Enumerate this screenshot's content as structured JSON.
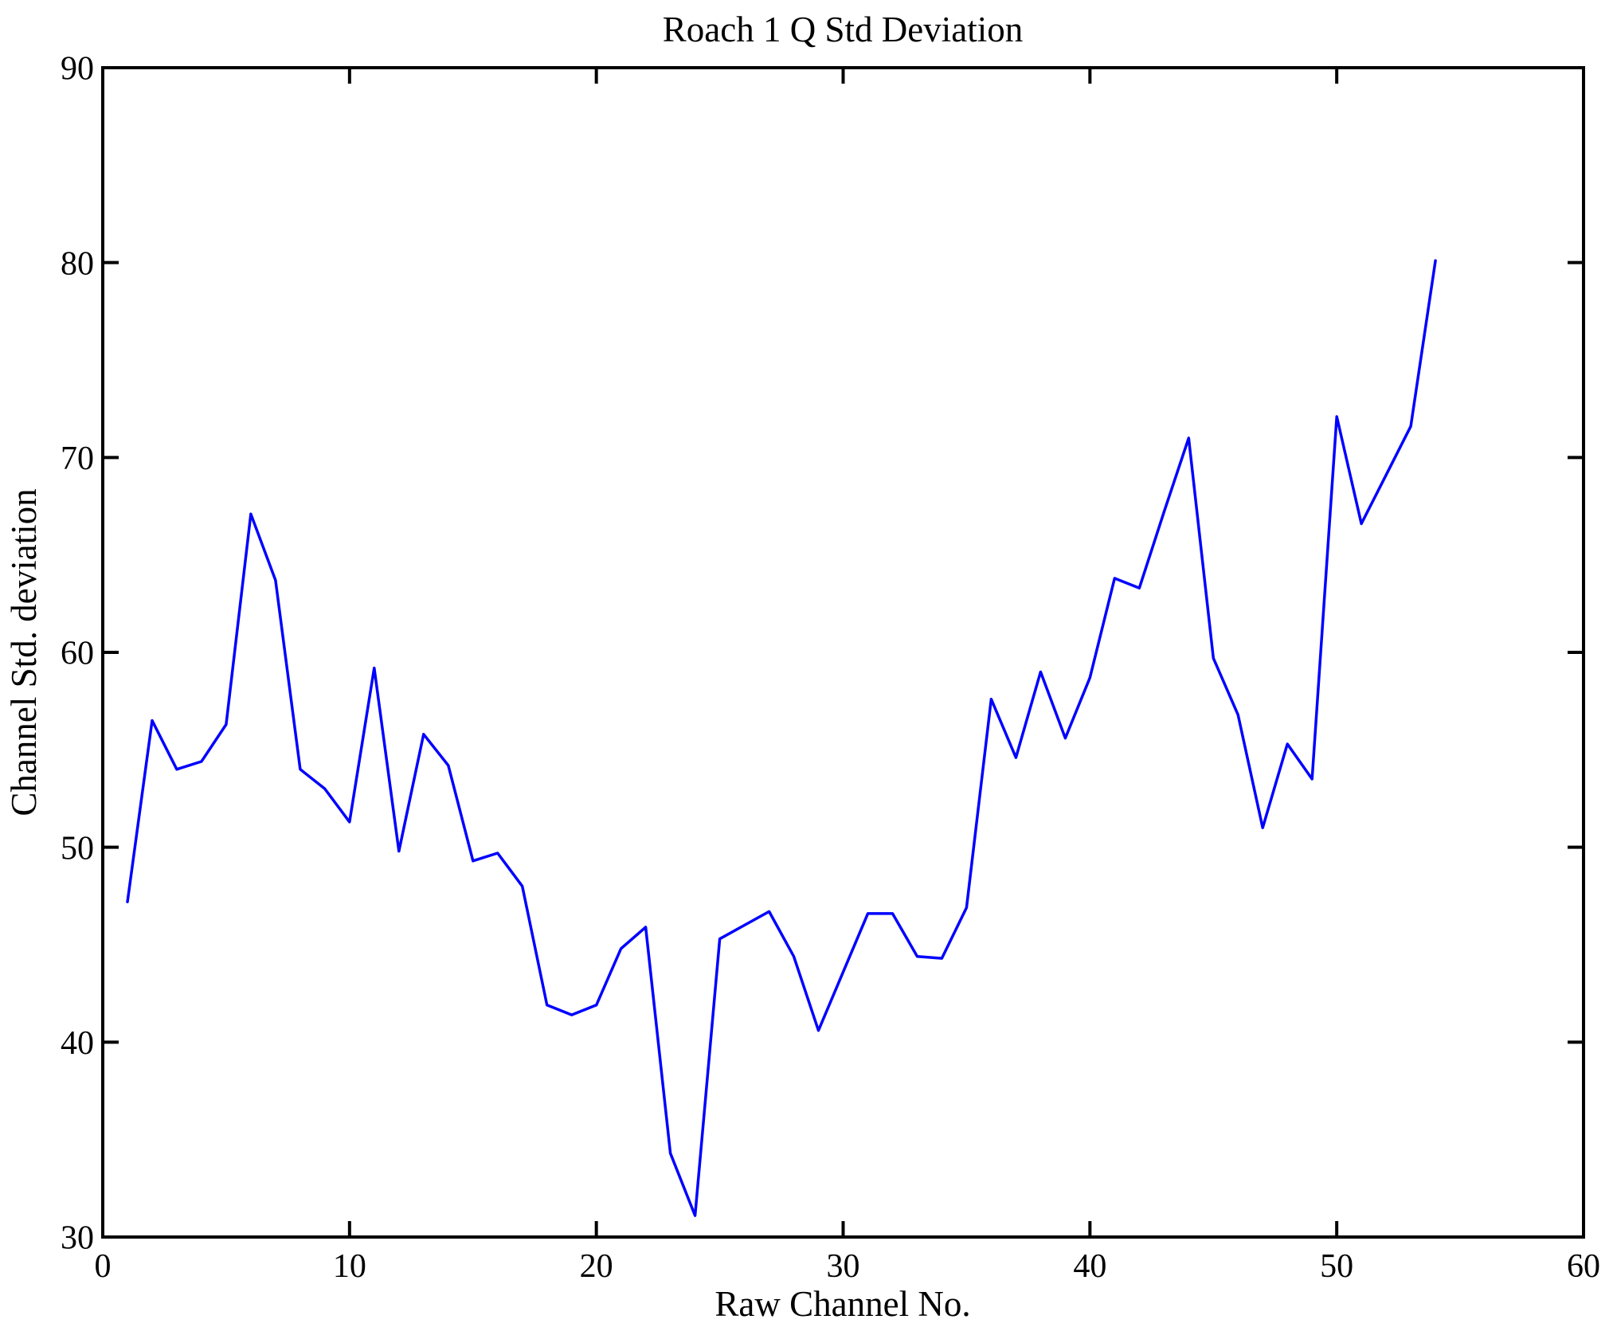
{
  "figure": {
    "title": "Roach 1 Q Std Deviation",
    "xlabel": "Raw Channel No.",
    "ylabel": "Channel Std. deviation"
  },
  "chart_data": {
    "type": "line",
    "title": "Roach 1 Q Std Deviation",
    "xlabel": "Raw Channel No.",
    "ylabel": "Channel Std. deviation",
    "xlim": [
      0,
      60
    ],
    "ylim": [
      30,
      90
    ],
    "xticks": [
      0,
      10,
      20,
      30,
      40,
      50,
      60
    ],
    "yticks": [
      30,
      40,
      50,
      60,
      70,
      80,
      90
    ],
    "grid": false,
    "legend_position": "none",
    "line_color": "#0000FF",
    "axis_color": "#000000",
    "series": [
      {
        "name": "Channel Std. deviation",
        "x": [
          1,
          2,
          3,
          4,
          5,
          6,
          7,
          8,
          9,
          10,
          11,
          12,
          13,
          14,
          15,
          16,
          17,
          18,
          19,
          20,
          21,
          22,
          23,
          24,
          25,
          26,
          27,
          28,
          29,
          30,
          31,
          32,
          33,
          34,
          35,
          36,
          37,
          38,
          39,
          40,
          41,
          42,
          43,
          44,
          45,
          46,
          47,
          48,
          49,
          50,
          51,
          52,
          53,
          54
        ],
        "y": [
          47.2,
          56.5,
          54.0,
          54.4,
          56.3,
          67.1,
          63.7,
          54.0,
          53.0,
          51.3,
          59.2,
          49.8,
          55.8,
          54.2,
          49.3,
          49.7,
          48.0,
          41.9,
          41.4,
          41.9,
          44.8,
          45.9,
          34.3,
          31.1,
          45.3,
          46.0,
          46.7,
          44.4,
          40.6,
          43.6,
          46.6,
          46.6,
          44.4,
          44.3,
          46.9,
          57.6,
          54.6,
          59.0,
          55.6,
          58.7,
          63.8,
          63.3,
          67.2,
          71.0,
          59.7,
          56.8,
          51.0,
          55.3,
          53.5,
          72.1,
          66.6,
          69.1,
          71.6,
          80.1
        ]
      }
    ]
  }
}
